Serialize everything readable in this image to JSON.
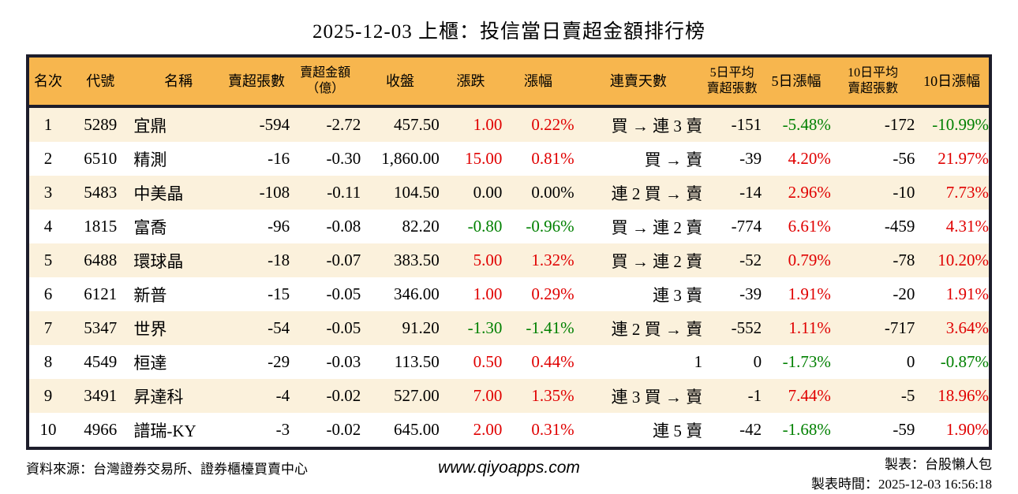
{
  "title": "2025-12-03 上櫃：投信當日賣超金額排行榜",
  "colors": {
    "header_bg": "#f7b64e",
    "table_border": "#1d1d2b",
    "row_alt_bg": "#fbf1dc",
    "up_red": "#e00000",
    "down_green": "#008000"
  },
  "chart_data": {
    "type": "table",
    "title": "2025-12-03 上櫃：投信當日賣超金額排行榜",
    "columns": [
      {
        "key": "rank",
        "label": "名次"
      },
      {
        "key": "code",
        "label": "代號"
      },
      {
        "key": "name",
        "label": "名稱"
      },
      {
        "key": "sell_volume",
        "label": "賣超張數"
      },
      {
        "key": "sell_amount",
        "label": "賣超金額\n（億）"
      },
      {
        "key": "close",
        "label": "收盤"
      },
      {
        "key": "change",
        "label": "漲跌"
      },
      {
        "key": "change_pct",
        "label": "漲幅"
      },
      {
        "key": "streak",
        "label": "連賣天數"
      },
      {
        "key": "avg5",
        "label": "5日平均\n賣超張數"
      },
      {
        "key": "pct5",
        "label": "5日漲幅"
      },
      {
        "key": "avg10",
        "label": "10日平均\n賣超張數"
      },
      {
        "key": "pct10",
        "label": "10日漲幅"
      }
    ],
    "rows": [
      {
        "rank": "1",
        "code": "5289",
        "name": "宜鼎",
        "sell_volume": "-594",
        "sell_amount": "-2.72",
        "close": "457.50",
        "change": "1.00",
        "change_pct": "0.22%",
        "streak": "買 → 連 3 賣",
        "avg5": "-151",
        "pct5": "-5.48%",
        "avg10": "-172",
        "pct10": "-10.99%",
        "colors": {
          "change": "red",
          "change_pct": "red",
          "pct5": "green",
          "pct10": "green"
        }
      },
      {
        "rank": "2",
        "code": "6510",
        "name": "精測",
        "sell_volume": "-16",
        "sell_amount": "-0.30",
        "close": "1,860.00",
        "change": "15.00",
        "change_pct": "0.81%",
        "streak": "買 → 賣",
        "avg5": "-39",
        "pct5": "4.20%",
        "avg10": "-56",
        "pct10": "21.97%",
        "colors": {
          "change": "red",
          "change_pct": "red",
          "pct5": "red",
          "pct10": "red"
        }
      },
      {
        "rank": "3",
        "code": "5483",
        "name": "中美晶",
        "sell_volume": "-108",
        "sell_amount": "-0.11",
        "close": "104.50",
        "change": "0.00",
        "change_pct": "0.00%",
        "streak": "連 2 買 → 賣",
        "avg5": "-14",
        "pct5": "2.96%",
        "avg10": "-10",
        "pct10": "7.73%",
        "colors": {
          "pct5": "red",
          "pct10": "red"
        }
      },
      {
        "rank": "4",
        "code": "1815",
        "name": "富喬",
        "sell_volume": "-96",
        "sell_amount": "-0.08",
        "close": "82.20",
        "change": "-0.80",
        "change_pct": "-0.96%",
        "streak": "買 → 連 2 賣",
        "avg5": "-774",
        "pct5": "6.61%",
        "avg10": "-459",
        "pct10": "4.31%",
        "colors": {
          "change": "green",
          "change_pct": "green",
          "pct5": "red",
          "pct10": "red"
        }
      },
      {
        "rank": "5",
        "code": "6488",
        "name": "環球晶",
        "sell_volume": "-18",
        "sell_amount": "-0.07",
        "close": "383.50",
        "change": "5.00",
        "change_pct": "1.32%",
        "streak": "買 → 連 2 賣",
        "avg5": "-52",
        "pct5": "0.79%",
        "avg10": "-78",
        "pct10": "10.20%",
        "colors": {
          "change": "red",
          "change_pct": "red",
          "pct5": "red",
          "pct10": "red"
        }
      },
      {
        "rank": "6",
        "code": "6121",
        "name": "新普",
        "sell_volume": "-15",
        "sell_amount": "-0.05",
        "close": "346.00",
        "change": "1.00",
        "change_pct": "0.29%",
        "streak": "連 3 賣",
        "avg5": "-39",
        "pct5": "1.91%",
        "avg10": "-20",
        "pct10": "1.91%",
        "colors": {
          "change": "red",
          "change_pct": "red",
          "pct5": "red",
          "pct10": "red"
        }
      },
      {
        "rank": "7",
        "code": "5347",
        "name": "世界",
        "sell_volume": "-54",
        "sell_amount": "-0.05",
        "close": "91.20",
        "change": "-1.30",
        "change_pct": "-1.41%",
        "streak": "連 2 買 → 賣",
        "avg5": "-552",
        "pct5": "1.11%",
        "avg10": "-717",
        "pct10": "3.64%",
        "colors": {
          "change": "green",
          "change_pct": "green",
          "pct5": "red",
          "pct10": "red"
        }
      },
      {
        "rank": "8",
        "code": "4549",
        "name": "桓達",
        "sell_volume": "-29",
        "sell_amount": "-0.03",
        "close": "113.50",
        "change": "0.50",
        "change_pct": "0.44%",
        "streak": "1",
        "avg5": "0",
        "pct5": "-1.73%",
        "avg10": "0",
        "pct10": "-0.87%",
        "colors": {
          "change": "red",
          "change_pct": "red",
          "pct5": "green",
          "pct10": "green"
        }
      },
      {
        "rank": "9",
        "code": "3491",
        "name": "昇達科",
        "sell_volume": "-4",
        "sell_amount": "-0.02",
        "close": "527.00",
        "change": "7.00",
        "change_pct": "1.35%",
        "streak": "連 3 買 → 賣",
        "avg5": "-1",
        "pct5": "7.44%",
        "avg10": "-5",
        "pct10": "18.96%",
        "colors": {
          "change": "red",
          "change_pct": "red",
          "pct5": "red",
          "pct10": "red"
        }
      },
      {
        "rank": "10",
        "code": "4966",
        "name": "譜瑞-KY",
        "sell_volume": "-3",
        "sell_amount": "-0.02",
        "close": "645.00",
        "change": "2.00",
        "change_pct": "0.31%",
        "streak": "連 5 賣",
        "avg5": "-42",
        "pct5": "-1.68%",
        "avg10": "-59",
        "pct10": "1.90%",
        "colors": {
          "change": "red",
          "change_pct": "red",
          "pct5": "green",
          "pct10": "red"
        }
      }
    ]
  },
  "footer": {
    "source": "資料來源：台灣證券交易所、證券櫃檯買賣中心",
    "website": "www.qiyoapps.com",
    "author": "製表：台股懶人包",
    "generated": "製表時間：2025-12-03 16:56:18"
  }
}
